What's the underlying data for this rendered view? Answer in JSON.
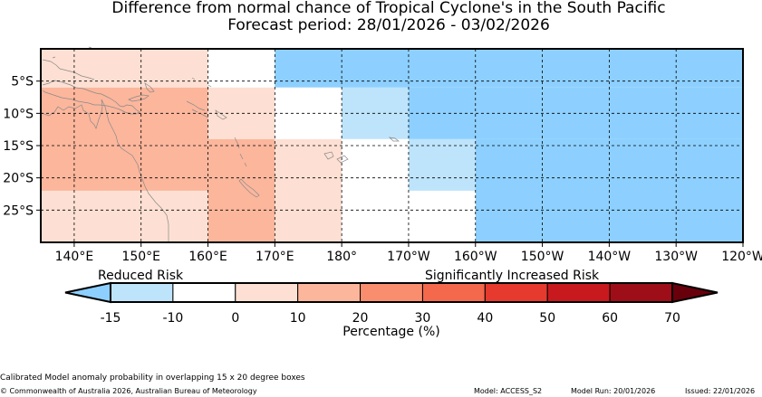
{
  "title": {
    "line1": "Difference from normal chance of Tropical Cyclone's in the South Pacific",
    "line2": "Forecast period: 28/01/2026 - 03/02/2026"
  },
  "map": {
    "lon_range": [
      135,
      240
    ],
    "lat_range": [
      -30,
      0
    ],
    "lon_ticks": [
      {
        "lon": 140,
        "label": "140°E"
      },
      {
        "lon": 150,
        "label": "150°E"
      },
      {
        "lon": 160,
        "label": "160°E"
      },
      {
        "lon": 170,
        "label": "170°E"
      },
      {
        "lon": 180,
        "label": "180°"
      },
      {
        "lon": 190,
        "label": "170°W"
      },
      {
        "lon": 200,
        "label": "160°W"
      },
      {
        "lon": 210,
        "label": "150°W"
      },
      {
        "lon": 220,
        "label": "140°W"
      },
      {
        "lon": 230,
        "label": "130°W"
      },
      {
        "lon": 240,
        "label": "120°W"
      }
    ],
    "lat_ticks": [
      {
        "lat": -5,
        "label": "5°S"
      },
      {
        "lat": -10,
        "label": "10°S"
      },
      {
        "lat": -15,
        "label": "15°S"
      },
      {
        "lat": -20,
        "label": "20°S"
      },
      {
        "lat": -25,
        "label": "25°S"
      }
    ],
    "cells": [
      {
        "lon": [
          135,
          160
        ],
        "lat": [
          -6,
          0
        ],
        "color": "#fde0d3"
      },
      {
        "lon": [
          160,
          170
        ],
        "lat": [
          -6,
          0
        ],
        "color": "#ffffff"
      },
      {
        "lon": [
          170,
          240
        ],
        "lat": [
          -6,
          0
        ],
        "color": "#8dd0ff"
      },
      {
        "lon": [
          135,
          160
        ],
        "lat": [
          -22,
          -6
        ],
        "color": "#fbb69c"
      },
      {
        "lon": [
          160,
          170
        ],
        "lat": [
          -14,
          -6
        ],
        "color": "#fde0d3"
      },
      {
        "lon": [
          170,
          180
        ],
        "lat": [
          -14,
          -6
        ],
        "color": "#ffffff"
      },
      {
        "lon": [
          180,
          190
        ],
        "lat": [
          -14,
          -6
        ],
        "color": "#bde4fb"
      },
      {
        "lon": [
          190,
          240
        ],
        "lat": [
          -14,
          -6
        ],
        "color": "#8dd0ff"
      },
      {
        "lon": [
          160,
          170
        ],
        "lat": [
          -30,
          -14
        ],
        "color": "#fbb69c"
      },
      {
        "lon": [
          170,
          180
        ],
        "lat": [
          -30,
          -14
        ],
        "color": "#fde0d3"
      },
      {
        "lon": [
          180,
          190
        ],
        "lat": [
          -30,
          -14
        ],
        "color": "#ffffff"
      },
      {
        "lon": [
          190,
          200
        ],
        "lat": [
          -22,
          -14
        ],
        "color": "#bde4fb"
      },
      {
        "lon": [
          200,
          240
        ],
        "lat": [
          -30,
          -14
        ],
        "color": "#8dd0ff"
      },
      {
        "lon": [
          135,
          160
        ],
        "lat": [
          -30,
          -22
        ],
        "color": "#fde0d3"
      },
      {
        "lon": [
          190,
          200
        ],
        "lat": [
          -30,
          -22
        ],
        "color": "#ffffff"
      }
    ]
  },
  "legend": {
    "reduced_label": "Reduced Risk",
    "increased_label": "Significantly Increased Risk",
    "unit_label": "Percentage (%)",
    "low_arrow_color": "#8dd0ff",
    "high_arrow_color": "#68000c",
    "bins": [
      {
        "from": "-15",
        "to": "-10",
        "color": "#bde4fb"
      },
      {
        "from": "-10",
        "to": "0",
        "color": "#ffffff"
      },
      {
        "from": "0",
        "to": "10",
        "color": "#fde0d3"
      },
      {
        "from": "10",
        "to": "20",
        "color": "#fbb69c"
      },
      {
        "from": "20",
        "to": "30",
        "color": "#f98e6f"
      },
      {
        "from": "30",
        "to": "40",
        "color": "#f4684c"
      },
      {
        "from": "40",
        "to": "50",
        "color": "#e63a2e"
      },
      {
        "from": "50",
        "to": "60",
        "color": "#c8191f"
      },
      {
        "from": "60",
        "to": "70",
        "color": "#9e0e19"
      }
    ],
    "tick_labels": [
      "-15",
      "-10",
      "0",
      "10",
      "20",
      "30",
      "40",
      "50",
      "60",
      "70"
    ]
  },
  "footer": {
    "note": "Calibrated Model anomaly probability in overlapping 15 x 20 degree boxes",
    "copyright": "© Commonwealth of Australia 2026, Australian Bureau of Meteorology",
    "model": "Model: ACCESS_S2",
    "model_run": "Model Run: 20/01/2026",
    "issued": "Issued: 22/01/2026"
  }
}
